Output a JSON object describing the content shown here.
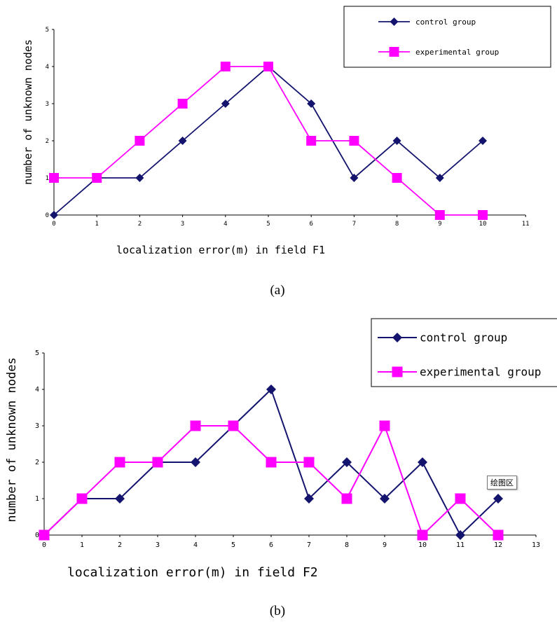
{
  "colors": {
    "control": "#14146e",
    "experimental": "#ff00ff"
  },
  "tooltip": "绘图区",
  "chart_data": [
    {
      "type": "line",
      "caption": "(a)",
      "xlabel": "localization error(m) in field F1",
      "ylabel": "number of unknown nodes",
      "xlim": [
        0,
        11
      ],
      "ylim": [
        0,
        5
      ],
      "x_ticks": [
        "0",
        "1",
        "2",
        "3",
        "4",
        "5",
        "6",
        "7",
        "8",
        "9",
        "10",
        "11"
      ],
      "y_ticks": [
        "0",
        "1",
        "2",
        "3",
        "4",
        "5"
      ],
      "legend": "top-right",
      "series": [
        {
          "name": "control group",
          "marker": "diamond",
          "x": [
            0,
            1,
            2,
            3,
            4,
            5,
            6,
            7,
            8,
            9,
            10
          ],
          "values": [
            0,
            1,
            1,
            2,
            3,
            4,
            3,
            1,
            2,
            1,
            2
          ]
        },
        {
          "name": "experimental group",
          "marker": "square",
          "x": [
            0,
            1,
            2,
            3,
            4,
            5,
            6,
            7,
            8,
            9,
            10
          ],
          "values": [
            1,
            1,
            2,
            3,
            4,
            4,
            2,
            2,
            1,
            0,
            0
          ]
        }
      ]
    },
    {
      "type": "line",
      "caption": "(b)",
      "xlabel": "localization error(m) in field F2",
      "ylabel": "number of unknown nodes",
      "xlim": [
        0,
        13
      ],
      "ylim": [
        0,
        5
      ],
      "x_ticks": [
        "0",
        "1",
        "2",
        "3",
        "4",
        "5",
        "6",
        "7",
        "8",
        "9",
        "10",
        "11",
        "12",
        "13"
      ],
      "y_ticks": [
        "0",
        "1",
        "2",
        "3",
        "4",
        "5"
      ],
      "legend": "top-right",
      "series": [
        {
          "name": "control group",
          "marker": "diamond",
          "x": [
            0,
            1,
            2,
            3,
            4,
            5,
            6,
            7,
            8,
            9,
            10,
            11,
            12
          ],
          "values": [
            0,
            1,
            1,
            2,
            2,
            3,
            4,
            1,
            2,
            1,
            2,
            0,
            1
          ]
        },
        {
          "name": "experimental group",
          "marker": "square",
          "x": [
            0,
            1,
            2,
            3,
            4,
            5,
            6,
            7,
            8,
            9,
            10,
            11,
            12
          ],
          "values": [
            0,
            1,
            2,
            2,
            3,
            3,
            2,
            2,
            1,
            3,
            0,
            1,
            0
          ]
        }
      ]
    }
  ]
}
